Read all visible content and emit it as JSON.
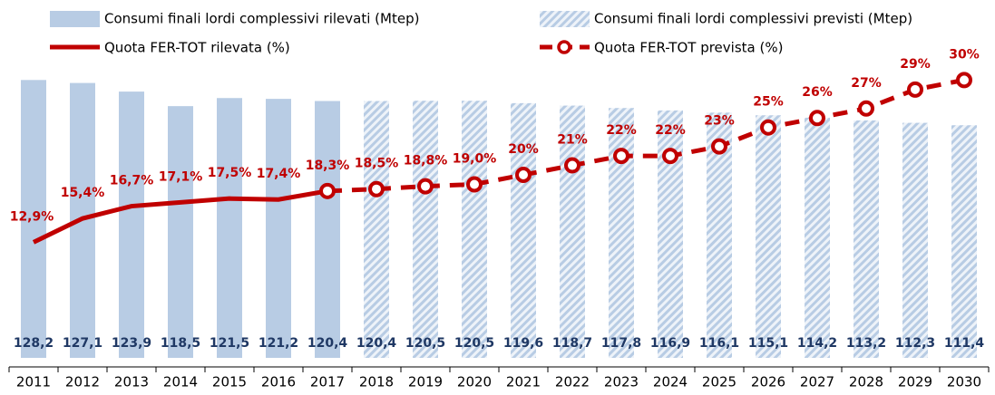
{
  "chart_data": {
    "type": "bar",
    "categories": [
      "2011",
      "2012",
      "2013",
      "2014",
      "2015",
      "2016",
      "2017",
      "2018",
      "2019",
      "2020",
      "2021",
      "2022",
      "2023",
      "2024",
      "2025",
      "2026",
      "2027",
      "2028",
      "2029",
      "2030"
    ],
    "ylim": [
      25,
      131
    ],
    "y2lim": [
      0.7,
      30.8
    ],
    "series": [
      {
        "name": "Consumi finali lordi complessivi rilevati (Mtep)",
        "type": "bar",
        "color": "#b8cce4",
        "values": [
          128.2,
          127.1,
          123.9,
          118.5,
          121.5,
          121.2,
          120.4,
          null,
          null,
          null,
          null,
          null,
          null,
          null,
          null,
          null,
          null,
          null,
          null,
          null
        ],
        "value_labels": [
          "128,2",
          "127,1",
          "123,9",
          "118,5",
          "121,5",
          "121,2",
          "120,4",
          null,
          null,
          null,
          null,
          null,
          null,
          null,
          null,
          null,
          null,
          null,
          null,
          null
        ]
      },
      {
        "name": "Consumi finali lordi complessivi previsti (Mtep)",
        "type": "bar",
        "color": "#b8cce4",
        "hatch": true,
        "values": [
          null,
          null,
          null,
          null,
          null,
          null,
          null,
          120.4,
          120.5,
          120.5,
          119.6,
          118.7,
          117.8,
          116.9,
          116.1,
          115.1,
          114.2,
          113.2,
          112.3,
          111.4
        ],
        "value_labels": [
          null,
          null,
          null,
          null,
          null,
          null,
          null,
          "120,4",
          "120,5",
          "120,5",
          "119,6",
          "118,7",
          "117,8",
          "116,9",
          "116,1",
          "115,1",
          "114,2",
          "113,2",
          "112,3",
          "111,4"
        ]
      },
      {
        "name": "Quota FER-TOT rilevata (%)",
        "type": "line",
        "axis": "y2",
        "color": "#c00000",
        "values": [
          12.9,
          15.4,
          16.7,
          17.1,
          17.5,
          17.4,
          18.3,
          null,
          null,
          null,
          null,
          null,
          null,
          null,
          null,
          null,
          null,
          null,
          null,
          null
        ],
        "value_labels": [
          "12,9%",
          "15,4%",
          "16,7%",
          "17,1%",
          "17,5%",
          "17,4%",
          "18,3%",
          null,
          null,
          null,
          null,
          null,
          null,
          null,
          null,
          null,
          null,
          null,
          null,
          null
        ]
      },
      {
        "name": "Quota FER-TOT prevista (%)",
        "type": "line",
        "axis": "y2",
        "color": "#c00000",
        "dashed": true,
        "markers": true,
        "values": [
          null,
          null,
          null,
          null,
          null,
          null,
          18.3,
          18.5,
          18.8,
          19.0,
          20,
          21,
          22,
          22,
          23,
          25,
          26,
          27,
          29,
          30
        ],
        "value_labels": [
          null,
          null,
          null,
          null,
          null,
          null,
          null,
          "18,5%",
          "18,8%",
          "19,0%",
          "20%",
          "21%",
          "22%",
          "22%",
          "23%",
          "25%",
          "26%",
          "27%",
          "29%",
          "30%"
        ]
      }
    ]
  }
}
